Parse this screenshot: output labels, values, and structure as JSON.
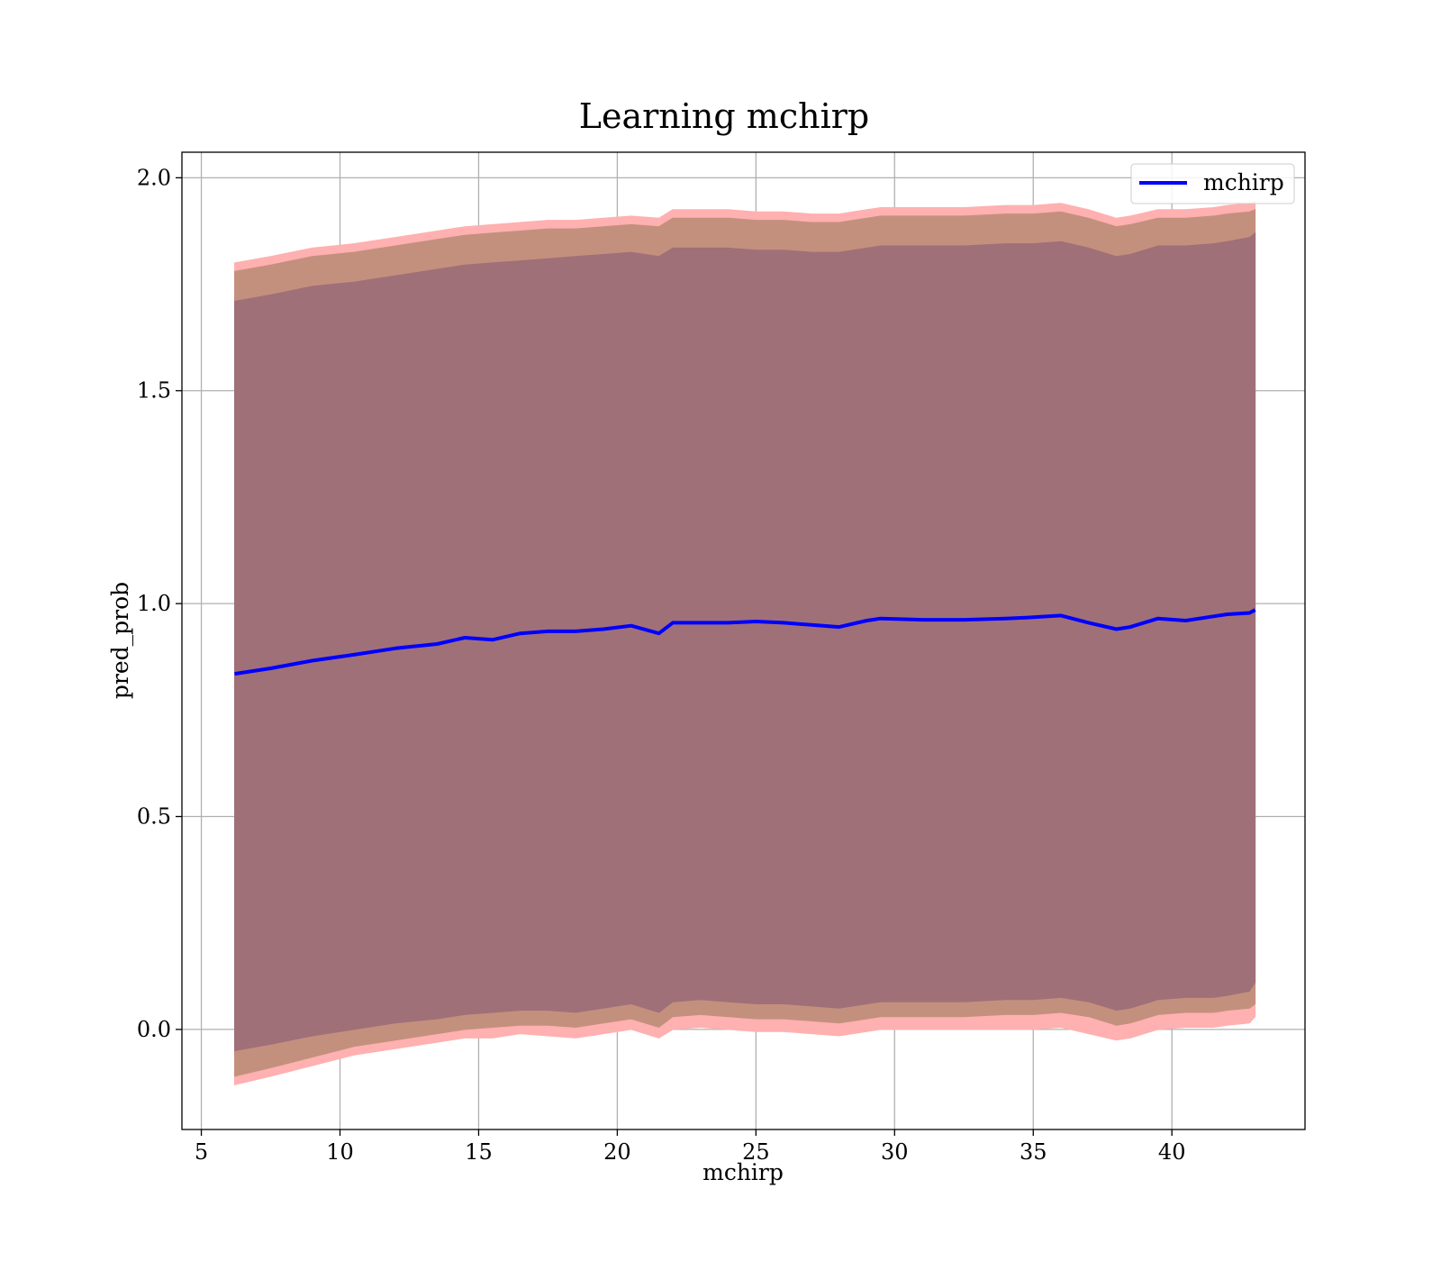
{
  "chart_data": {
    "type": "line",
    "title": "Learning mchirp",
    "xlabel": "mchirp",
    "ylabel": "pred_prob",
    "xlim": [
      4.3,
      44.8
    ],
    "ylim": [
      -0.235,
      2.06
    ],
    "xticks": [
      5,
      10,
      15,
      20,
      25,
      30,
      35,
      40
    ],
    "xtick_labels": [
      "5",
      "10",
      "15",
      "20",
      "25",
      "30",
      "35",
      "40"
    ],
    "yticks": [
      0.0,
      0.5,
      1.0,
      1.5,
      2.0
    ],
    "ytick_labels": [
      "0.0",
      "0.5",
      "1.0",
      "1.5",
      "2.0"
    ],
    "grid": true,
    "legend": {
      "position": "upper right",
      "entries": [
        "mchirp"
      ]
    },
    "colors": {
      "line": "#0000ff",
      "outer_band": "#ffb0b0",
      "middle_band": "#c4907e",
      "inner_band": "#a07078"
    },
    "x": [
      6.2,
      7.5,
      9.0,
      10.5,
      12.0,
      13.5,
      14.5,
      15.5,
      16.5,
      17.5,
      18.5,
      19.5,
      20.5,
      21.5,
      22.0,
      23.0,
      24.0,
      25.0,
      26.0,
      27.0,
      28.0,
      29.0,
      29.5,
      31.0,
      32.5,
      34.0,
      35.0,
      36.0,
      37.0,
      38.0,
      38.5,
      39.5,
      40.5,
      41.5,
      42.0,
      42.8,
      43.0
    ],
    "series": [
      {
        "name": "mchirp",
        "values": [
          0.835,
          0.848,
          0.866,
          0.88,
          0.895,
          0.905,
          0.92,
          0.915,
          0.93,
          0.935,
          0.935,
          0.94,
          0.948,
          0.93,
          0.955,
          0.955,
          0.955,
          0.958,
          0.955,
          0.95,
          0.945,
          0.96,
          0.965,
          0.962,
          0.962,
          0.965,
          0.968,
          0.972,
          0.955,
          0.94,
          0.945,
          0.965,
          0.96,
          0.97,
          0.975,
          0.978,
          0.985
        ]
      }
    ],
    "bands": [
      {
        "lower": [
          -0.13,
          -0.11,
          -0.085,
          -0.06,
          -0.045,
          -0.03,
          -0.02,
          -0.02,
          -0.01,
          -0.015,
          -0.02,
          -0.01,
          0.0,
          -0.02,
          0.0,
          0.005,
          0.0,
          -0.005,
          -0.005,
          -0.01,
          -0.015,
          -0.005,
          0.0,
          0.0,
          0.0,
          0.0,
          0.0,
          0.005,
          -0.01,
          -0.025,
          -0.02,
          0.0,
          0.005,
          0.005,
          0.01,
          0.015,
          0.03
        ],
        "upper": [
          1.8,
          1.815,
          1.835,
          1.845,
          1.86,
          1.875,
          1.885,
          1.89,
          1.895,
          1.9,
          1.9,
          1.905,
          1.91,
          1.905,
          1.925,
          1.925,
          1.925,
          1.92,
          1.92,
          1.915,
          1.915,
          1.925,
          1.93,
          1.93,
          1.93,
          1.935,
          1.935,
          1.94,
          1.925,
          1.905,
          1.91,
          1.925,
          1.925,
          1.93,
          1.935,
          1.94,
          1.945
        ]
      },
      {
        "lower": [
          -0.11,
          -0.09,
          -0.065,
          -0.04,
          -0.025,
          -0.01,
          0.0,
          0.005,
          0.01,
          0.01,
          0.005,
          0.015,
          0.025,
          0.005,
          0.03,
          0.035,
          0.03,
          0.025,
          0.025,
          0.02,
          0.015,
          0.025,
          0.03,
          0.03,
          0.03,
          0.035,
          0.035,
          0.04,
          0.03,
          0.01,
          0.015,
          0.035,
          0.04,
          0.04,
          0.045,
          0.05,
          0.06
        ],
        "upper": [
          1.78,
          1.795,
          1.815,
          1.825,
          1.84,
          1.855,
          1.865,
          1.87,
          1.875,
          1.88,
          1.88,
          1.885,
          1.89,
          1.885,
          1.905,
          1.905,
          1.905,
          1.9,
          1.9,
          1.895,
          1.895,
          1.905,
          1.91,
          1.91,
          1.91,
          1.915,
          1.915,
          1.92,
          1.905,
          1.885,
          1.89,
          1.905,
          1.905,
          1.91,
          1.915,
          1.92,
          1.925
        ]
      },
      {
        "lower": [
          -0.05,
          -0.035,
          -0.015,
          0.0,
          0.015,
          0.025,
          0.035,
          0.04,
          0.045,
          0.045,
          0.04,
          0.05,
          0.06,
          0.04,
          0.065,
          0.07,
          0.065,
          0.06,
          0.06,
          0.055,
          0.05,
          0.06,
          0.065,
          0.065,
          0.065,
          0.07,
          0.07,
          0.075,
          0.065,
          0.045,
          0.05,
          0.07,
          0.075,
          0.075,
          0.08,
          0.09,
          0.11
        ],
        "upper": [
          1.71,
          1.725,
          1.745,
          1.755,
          1.77,
          1.785,
          1.795,
          1.8,
          1.805,
          1.81,
          1.815,
          1.82,
          1.825,
          1.815,
          1.835,
          1.835,
          1.835,
          1.83,
          1.83,
          1.825,
          1.825,
          1.835,
          1.84,
          1.84,
          1.84,
          1.845,
          1.845,
          1.85,
          1.835,
          1.815,
          1.82,
          1.84,
          1.84,
          1.845,
          1.85,
          1.86,
          1.87
        ]
      }
    ]
  }
}
